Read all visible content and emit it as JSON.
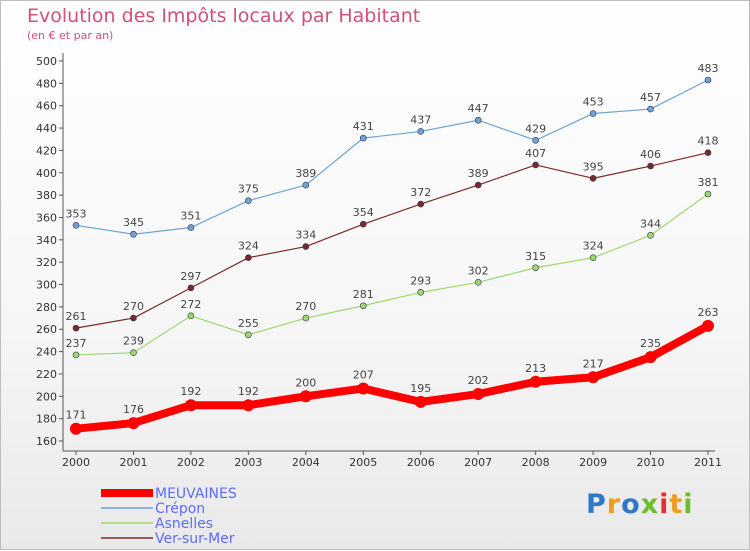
{
  "title": "Evolution des Impôts locaux par Habitant",
  "subtitle": "(en € et par an)",
  "logo": {
    "letters": [
      "P",
      "r",
      "o",
      "x",
      "i",
      "t",
      "i"
    ],
    "colors": [
      "#2f78c4",
      "#f29a1c",
      "#2f78c4",
      "#6cbf2a",
      "#e2302e",
      "#f29a1c",
      "#6cbf2a"
    ]
  },
  "chart_data": {
    "type": "line",
    "title": "Evolution des Impôts locaux par Habitant",
    "subtitle": "(en € et par an)",
    "x": [
      "2000",
      "2001",
      "2002",
      "2003",
      "2004",
      "2005",
      "2006",
      "2007",
      "2008",
      "2009",
      "2010",
      "2011"
    ],
    "ylim": [
      160,
      500
    ],
    "yticks": [
      "160",
      "180",
      "200",
      "220",
      "240",
      "260",
      "280",
      "300",
      "320",
      "340",
      "360",
      "380",
      "400",
      "420",
      "440",
      "460",
      "480",
      "500"
    ],
    "grid": false,
    "legend_position": "bottom-left",
    "series": [
      {
        "name": "MEUVAINES",
        "color": "#ff0000",
        "values": [
          171,
          176,
          192,
          192,
          200,
          207,
          195,
          202,
          213,
          217,
          235,
          263
        ]
      },
      {
        "name": "Crépon",
        "color": "#6fa3d3",
        "values": [
          353,
          345,
          351,
          375,
          389,
          431,
          437,
          447,
          429,
          453,
          457,
          483
        ]
      },
      {
        "name": "Asnelles",
        "color": "#9dd86f",
        "values": [
          237,
          239,
          272,
          255,
          270,
          281,
          293,
          302,
          315,
          324,
          344,
          381
        ]
      },
      {
        "name": "Ver-sur-Mer",
        "color": "#7a2a2a",
        "values": [
          261,
          270,
          297,
          324,
          334,
          354,
          372,
          389,
          407,
          395,
          406,
          418
        ]
      }
    ]
  }
}
